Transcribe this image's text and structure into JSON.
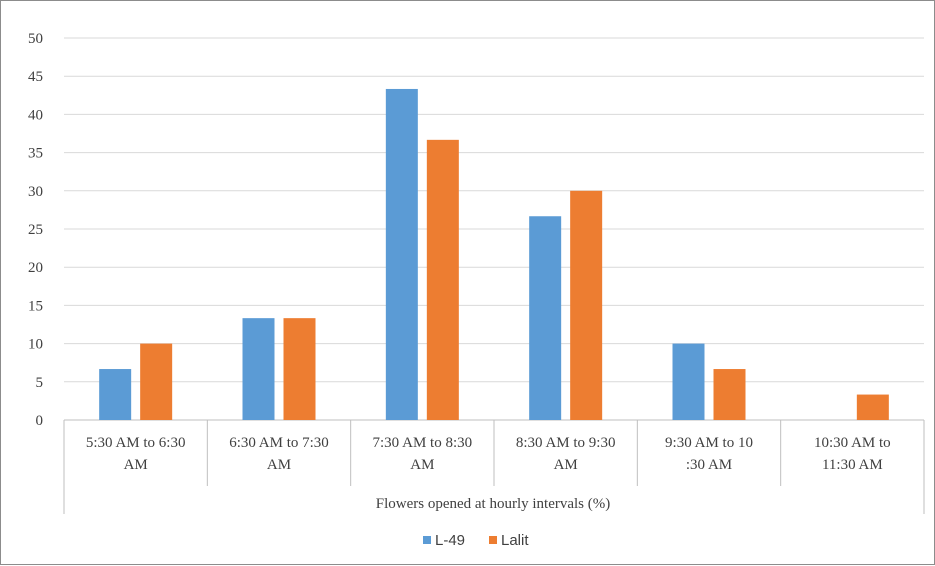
{
  "colors": {
    "l49": "#5b9bd5",
    "lalit": "#ed7d31",
    "grid": "#d9d9d9",
    "axis": "#bfbfbf"
  },
  "chart_data": {
    "type": "bar",
    "categories": [
      [
        "5:30 AM to 6:30",
        "AM"
      ],
      [
        "6:30 AM to 7:30",
        "AM"
      ],
      [
        "7:30 AM to 8:30",
        "AM"
      ],
      [
        "8:30 AM to 9:30",
        "AM"
      ],
      [
        "9:30 AM to 10",
        ":30 AM"
      ],
      [
        "10:30 AM to",
        "11:30 AM"
      ]
    ],
    "series": [
      {
        "name": "L-49",
        "values": [
          6.67,
          13.33,
          43.33,
          26.67,
          10,
          0
        ]
      },
      {
        "name": "Lalit",
        "values": [
          10,
          13.33,
          36.67,
          30,
          6.67,
          3.33
        ]
      }
    ],
    "title": "",
    "xlabel": "Flowers opened at hourly intervals (%)",
    "ylabel": "",
    "ylim": [
      0,
      50
    ],
    "yticks": [
      "0",
      "5",
      "10",
      "15",
      "20",
      "25",
      "30",
      "35",
      "40",
      "45",
      "50"
    ],
    "grid": true,
    "legend_position": "bottom"
  }
}
